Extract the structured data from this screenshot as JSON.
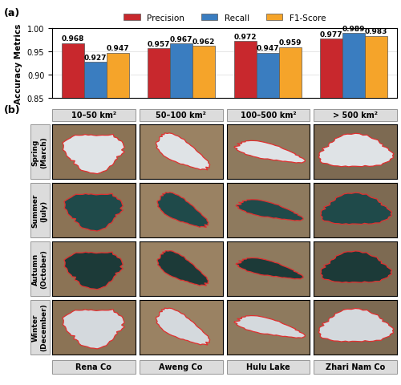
{
  "chart_data": {
    "type": "bar",
    "panel_label": "(a)",
    "ylabel": "Accuracy Metrics",
    "categories": [
      "10–50 km²",
      "50–100 km²",
      "100–500 km²",
      "> 500 km²"
    ],
    "series": [
      {
        "name": "Precision",
        "color": "#c8282d",
        "values": [
          0.968,
          0.957,
          0.972,
          0.977
        ]
      },
      {
        "name": "Recall",
        "color": "#3a7dc0",
        "values": [
          0.927,
          0.967,
          0.947,
          0.989
        ]
      },
      {
        "name": "F1-Score",
        "color": "#f5a42a",
        "values": [
          0.947,
          0.962,
          0.959,
          0.983
        ]
      }
    ],
    "ylim": [
      0.85,
      1.0
    ],
    "yticks": [
      0.85,
      {
        "value": 0.9,
        "label": "0.90"
      },
      0.95,
      {
        "value": 1.0,
        "label": "1.00"
      }
    ],
    "grid": true,
    "legend": "upper center",
    "data_labels": true,
    "tick_labels": "y"
  },
  "image_grid": {
    "panel_label": "(b)",
    "rows": [
      "Spring\n(March)",
      "Summer\n(July)",
      "Autumn\n(October)",
      "Winter\n(December)"
    ],
    "lakes": [
      "Rena Co",
      "Aweng Co",
      "Hulu Lake",
      "Zhari Nam Co"
    ]
  }
}
